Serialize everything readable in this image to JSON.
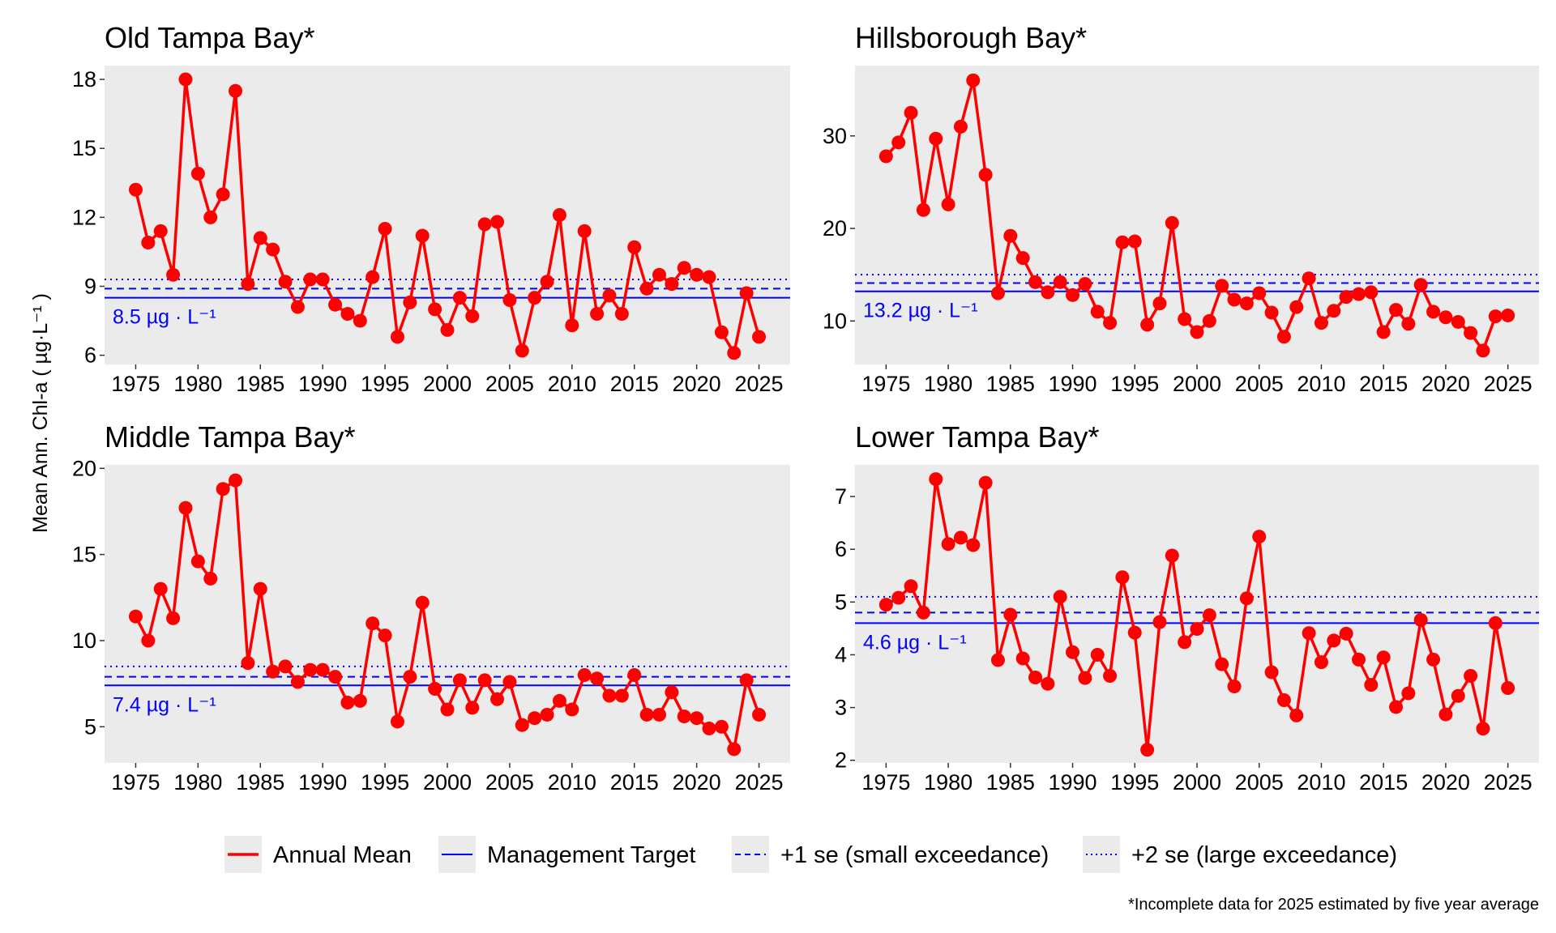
{
  "ylabel": "Mean Ann. Chl-a ( µg·L⁻¹ )",
  "footnote": "*Incomplete data for 2025 estimated by five year average",
  "legend": [
    {
      "label": "Annual Mean",
      "color": "#ff0000",
      "style": "solid"
    },
    {
      "label": "Management Target",
      "color": "#0000ff",
      "style": "solid"
    },
    {
      "label": "+1 se (small exceedance)",
      "color": "#0000ff",
      "style": "dashed"
    },
    {
      "label": "+2 se (large exceedance)",
      "color": "#0000ff",
      "style": "dotted"
    }
  ],
  "colors": {
    "series": "#ff0000",
    "target": "#0000ff",
    "panel_bg": "#ebebeb"
  },
  "chart_data": [
    {
      "type": "line",
      "title": "Old Tampa Bay*",
      "target_label": "8.5 µg · L⁻¹",
      "target": 8.5,
      "se1": 8.9,
      "se2": 9.3,
      "ylim": [
        5.6,
        18.6
      ],
      "yticks": [
        6,
        9,
        12,
        15,
        18
      ],
      "xlim": [
        1972.5,
        2027.5
      ],
      "xticks": [
        1975,
        1980,
        1985,
        1990,
        1995,
        2000,
        2005,
        2010,
        2015,
        2020,
        2025
      ],
      "x_start": 1975,
      "values": [
        13.2,
        10.9,
        11.4,
        9.5,
        18.0,
        13.9,
        12.0,
        13.0,
        17.5,
        9.1,
        11.1,
        10.6,
        9.2,
        8.1,
        9.3,
        9.3,
        8.2,
        7.8,
        7.5,
        9.4,
        11.5,
        6.8,
        8.3,
        11.2,
        8.0,
        7.1,
        8.5,
        7.7,
        11.7,
        11.8,
        8.4,
        6.2,
        8.5,
        9.2,
        12.1,
        7.3,
        11.4,
        7.8,
        8.6,
        7.8,
        10.7,
        8.9,
        9.5,
        9.1,
        9.8,
        9.5,
        9.4,
        7.0,
        6.1,
        8.7,
        6.8
      ]
    },
    {
      "type": "line",
      "title": "Hillsborough Bay*",
      "target_label": "13.2 µg · L⁻¹",
      "target": 13.2,
      "se1": 14.1,
      "se2": 15.0,
      "ylim": [
        5.3,
        37.6
      ],
      "yticks": [
        10,
        20,
        30
      ],
      "xlim": [
        1972.5,
        2027.5
      ],
      "xticks": [
        1975,
        1980,
        1985,
        1990,
        1995,
        2000,
        2005,
        2010,
        2015,
        2020,
        2025
      ],
      "x_start": 1975,
      "values": [
        27.8,
        29.3,
        32.5,
        22.0,
        29.7,
        22.6,
        31.0,
        36.0,
        25.8,
        13.0,
        19.2,
        16.8,
        14.2,
        13.1,
        14.2,
        12.8,
        14.0,
        11.0,
        9.8,
        18.5,
        18.6,
        9.6,
        11.9,
        20.6,
        10.2,
        8.8,
        10.0,
        13.8,
        12.3,
        11.9,
        13.0,
        10.9,
        8.3,
        11.5,
        14.6,
        9.8,
        11.1,
        12.6,
        12.9,
        13.1,
        8.8,
        11.2,
        9.7,
        13.9,
        11.0,
        10.4,
        9.9,
        8.7,
        6.8,
        10.5,
        10.6
      ]
    },
    {
      "type": "line",
      "title": "Middle Tampa Bay*",
      "target_label": "7.4 µg · L⁻¹",
      "target": 7.4,
      "se1": 7.9,
      "se2": 8.5,
      "ylim": [
        2.9,
        20.2
      ],
      "yticks": [
        5,
        10,
        15,
        20
      ],
      "xlim": [
        1972.5,
        2027.5
      ],
      "xticks": [
        1975,
        1980,
        1985,
        1990,
        1995,
        2000,
        2005,
        2010,
        2015,
        2020,
        2025
      ],
      "x_start": 1975,
      "values": [
        11.4,
        10.0,
        13.0,
        11.3,
        17.7,
        14.6,
        13.6,
        18.8,
        19.3,
        8.7,
        13.0,
        8.2,
        8.5,
        7.6,
        8.3,
        8.3,
        7.9,
        6.4,
        6.5,
        11.0,
        10.3,
        5.3,
        7.9,
        12.2,
        7.2,
        6.0,
        7.7,
        6.1,
        7.7,
        6.6,
        7.6,
        5.1,
        5.5,
        5.7,
        6.5,
        6.0,
        8.0,
        7.8,
        6.8,
        6.8,
        8.0,
        5.7,
        5.7,
        7.0,
        5.6,
        5.5,
        4.9,
        5.0,
        3.7,
        7.7,
        5.7
      ]
    },
    {
      "type": "line",
      "title": "Lower Tampa Bay*",
      "target_label": "4.6 µg · L⁻¹",
      "target": 4.6,
      "se1": 4.8,
      "se2": 5.1,
      "ylim": [
        1.95,
        7.6
      ],
      "yticks": [
        2,
        3,
        4,
        5,
        6,
        7
      ],
      "xlim": [
        1972.5,
        2027.5
      ],
      "xticks": [
        1975,
        1980,
        1985,
        1990,
        1995,
        2000,
        2005,
        2010,
        2015,
        2020,
        2025
      ],
      "x_start": 1975,
      "values": [
        4.95,
        5.08,
        5.3,
        4.8,
        7.33,
        6.1,
        6.22,
        6.08,
        7.26,
        3.9,
        4.76,
        3.93,
        3.57,
        3.45,
        5.1,
        4.05,
        3.56,
        4.0,
        3.6,
        5.47,
        4.42,
        2.2,
        4.62,
        5.88,
        4.24,
        4.49,
        4.75,
        3.82,
        3.4,
        5.07,
        6.24,
        3.67,
        3.14,
        2.85,
        4.41,
        3.86,
        4.27,
        4.4,
        3.91,
        3.43,
        3.95,
        3.01,
        3.27,
        4.66,
        3.91,
        2.87,
        3.22,
        3.6,
        2.6,
        4.6,
        3.37
      ]
    }
  ]
}
